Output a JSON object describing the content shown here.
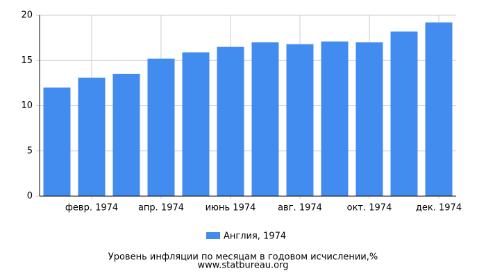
{
  "chart_data": {
    "type": "bar",
    "title": "Уровень инфляции по месяцам в годовом исчислении,%",
    "source": "www.statbureau.org",
    "categories": [
      null,
      "февр. 1974",
      null,
      "апр. 1974",
      null,
      "июнь 1974",
      null,
      "авг. 1974",
      null,
      "окт. 1974",
      null,
      "дек. 1974"
    ],
    "series": [
      {
        "name": "Англия, 1974",
        "color": "#428bef",
        "values": [
          12.0,
          13.1,
          13.5,
          15.2,
          15.9,
          16.5,
          17.0,
          16.8,
          17.1,
          17.0,
          18.2,
          19.2
        ]
      }
    ],
    "ylim": [
      0,
      20
    ],
    "yticks": [
      0,
      5,
      10,
      15,
      20
    ],
    "grid": true
  }
}
